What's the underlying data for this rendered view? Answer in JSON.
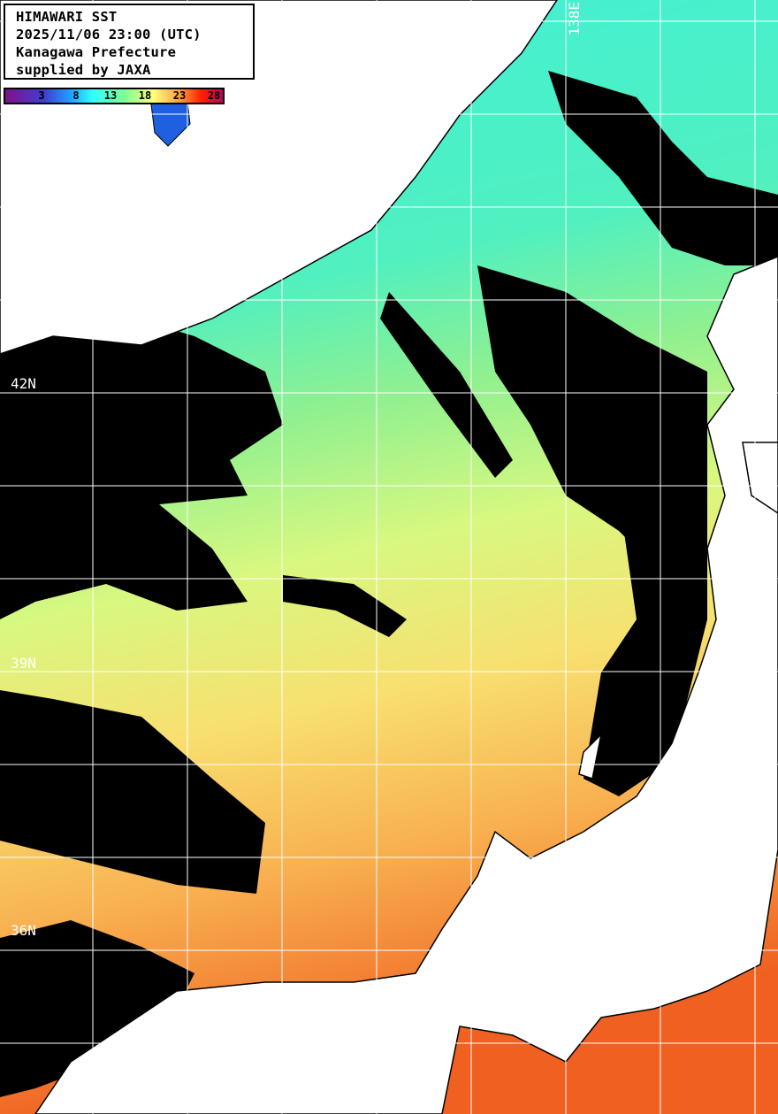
{
  "title": {
    "lines": [
      "HIMAWARI SST",
      "2025/11/06 23:00 (UTC)",
      "Kanagawa Prefecture",
      "supplied by JAXA"
    ]
  },
  "colorbar": {
    "ticks": [
      "3",
      "8",
      "13",
      "18",
      "23",
      "28"
    ],
    "colors": [
      "#80108a",
      "#4040d0",
      "#20a0ff",
      "#30ffff",
      "#80ff90",
      "#ffff80",
      "#ffa040",
      "#ff2000",
      "#c00060"
    ]
  },
  "grid": {
    "lat_labels": [
      "42N",
      "39N",
      "36N"
    ],
    "lon_labels": [
      "138E"
    ]
  },
  "colors": {
    "land": "#ffffff",
    "cloud": "#000000",
    "grid": "#ffffff"
  }
}
